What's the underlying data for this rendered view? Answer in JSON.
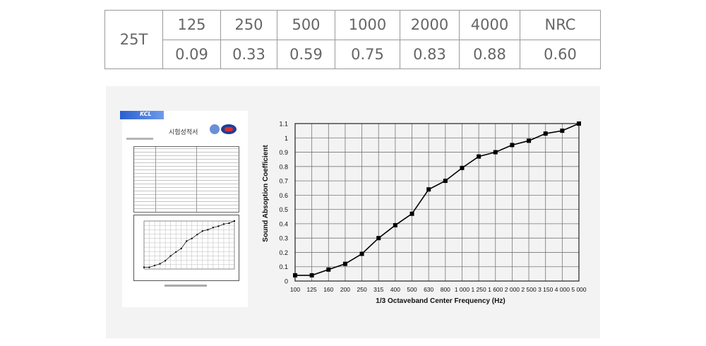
{
  "spec_table": {
    "row_label": "25T",
    "headers": [
      "125",
      "250",
      "500",
      "1000",
      "2000",
      "4000",
      "NRC"
    ],
    "values": [
      "0.09",
      "0.33",
      "0.59",
      "0.75",
      "0.83",
      "0.88",
      "0.60"
    ]
  },
  "report": {
    "brand": "KCL",
    "title": "시험성적서"
  },
  "chart_data": {
    "type": "line",
    "xlabel": "1/3 Octaveband Center Frequency (Hz)",
    "ylabel": "Sound Absoption Coefficient",
    "categories": [
      "100",
      "125",
      "160",
      "200",
      "250",
      "315",
      "400",
      "500",
      "630",
      "800",
      "1 000",
      "1 250",
      "1 600",
      "2 000",
      "2 500",
      "3 150",
      "4 000",
      "5 000"
    ],
    "series": [
      {
        "values": [
          0.04,
          0.04,
          0.08,
          0.12,
          0.19,
          0.3,
          0.39,
          0.47,
          0.64,
          0.7,
          0.79,
          0.87,
          0.9,
          0.95,
          0.98,
          1.03,
          1.05,
          1.1
        ]
      }
    ],
    "y_ticks": [
      "0",
      "0.1",
      "0.2",
      "0.3",
      "0.4",
      "0.5",
      "0.6",
      "0.7",
      "0.8",
      "0.9",
      "1",
      "1.1"
    ],
    "ylim": [
      0,
      1.1
    ],
    "grid": true,
    "marker": "square",
    "line_color": "#000000"
  }
}
